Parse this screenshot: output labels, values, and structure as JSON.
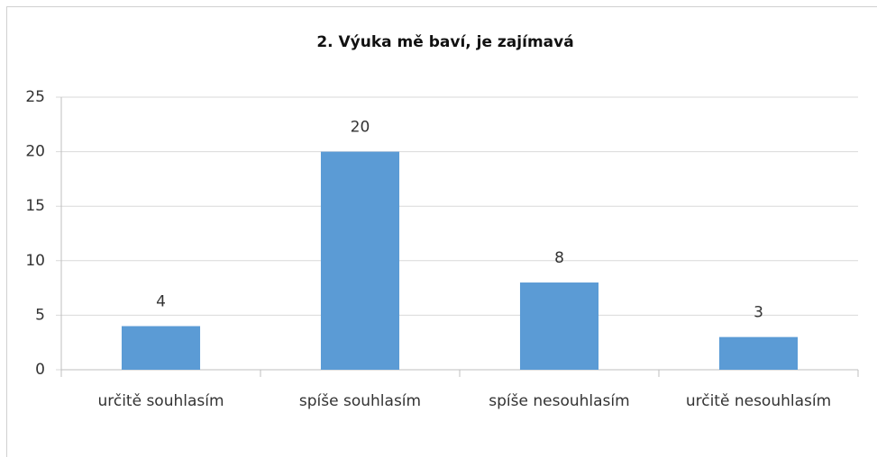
{
  "chart_data": {
    "type": "bar",
    "title": "2. Výuka mě baví, je zajímavá",
    "categories": [
      "určitě souhlasím",
      "spíše souhlasím",
      "spíše nesouhlasím",
      "určitě nesouhlasím"
    ],
    "values": [
      4,
      20,
      8,
      3
    ],
    "color": "#5b9bd5",
    "ylim": [
      0,
      25
    ],
    "yticks": [
      0,
      5,
      10,
      15,
      20,
      25
    ],
    "grid": true
  }
}
